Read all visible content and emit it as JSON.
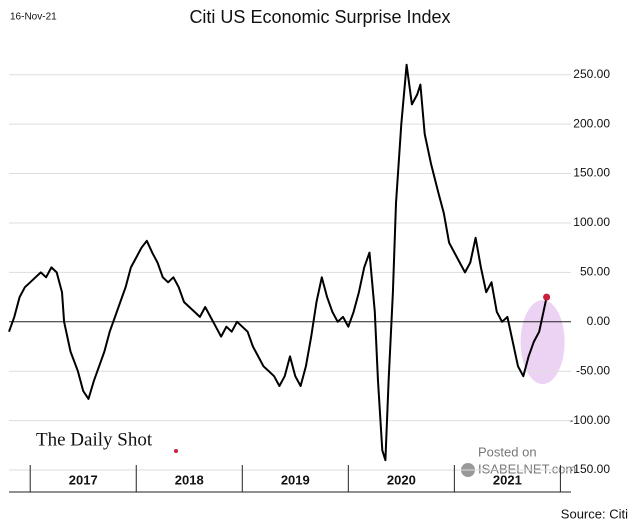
{
  "chart_data": {
    "type": "line",
    "title": "Citi US Economic Surprise Index",
    "date": "16-Nov-21",
    "brand": "The Daily Shot",
    "watermark": [
      "Posted on",
      "ISABELNET.com"
    ],
    "source": "Source: Citi",
    "series": [
      {
        "name": "Citi US Economic Surprise Index",
        "color": "#000000",
        "x": [
          2016.8,
          2016.85,
          2016.9,
          2016.95,
          2017.0,
          2017.05,
          2017.1,
          2017.15,
          2017.2,
          2017.25,
          2017.3,
          2017.32,
          2017.38,
          2017.45,
          2017.5,
          2017.55,
          2017.6,
          2017.65,
          2017.7,
          2017.75,
          2017.8,
          2017.85,
          2017.9,
          2017.95,
          2018.0,
          2018.05,
          2018.1,
          2018.15,
          2018.2,
          2018.25,
          2018.3,
          2018.35,
          2018.4,
          2018.45,
          2018.5,
          2018.55,
          2018.6,
          2018.65,
          2018.7,
          2018.75,
          2018.8,
          2018.85,
          2018.9,
          2018.95,
          2019.0,
          2019.05,
          2019.1,
          2019.15,
          2019.2,
          2019.25,
          2019.3,
          2019.35,
          2019.4,
          2019.45,
          2019.5,
          2019.55,
          2019.6,
          2019.65,
          2019.7,
          2019.75,
          2019.8,
          2019.85,
          2019.9,
          2019.95,
          2020.0,
          2020.05,
          2020.1,
          2020.15,
          2020.2,
          2020.25,
          2020.28,
          2020.32,
          2020.35,
          2020.38,
          2020.42,
          2020.45,
          2020.5,
          2020.55,
          2020.6,
          2020.65,
          2020.68,
          2020.72,
          2020.78,
          2020.85,
          2020.9,
          2020.95,
          2021.0,
          2021.05,
          2021.1,
          2021.15,
          2021.2,
          2021.25,
          2021.3,
          2021.35,
          2021.4,
          2021.45,
          2021.5,
          2021.55,
          2021.6,
          2021.65,
          2021.7,
          2021.75,
          2021.8,
          2021.85,
          2021.87
        ],
        "values": [
          -10,
          5,
          25,
          35,
          40,
          45,
          50,
          45,
          55,
          50,
          30,
          0,
          -30,
          -50,
          -70,
          -78,
          -60,
          -45,
          -30,
          -10,
          5,
          20,
          35,
          55,
          65,
          75,
          82,
          70,
          60,
          45,
          40,
          45,
          35,
          20,
          15,
          10,
          5,
          15,
          5,
          -5,
          -15,
          -5,
          -10,
          0,
          -5,
          -10,
          -25,
          -35,
          -45,
          -50,
          -55,
          -65,
          -55,
          -35,
          -55,
          -65,
          -45,
          -15,
          20,
          45,
          25,
          10,
          0,
          5,
          -5,
          10,
          30,
          55,
          70,
          10,
          -60,
          -130,
          -140,
          -60,
          30,
          120,
          200,
          260,
          220,
          230,
          240,
          190,
          160,
          130,
          110,
          80,
          70,
          60,
          50,
          60,
          85,
          55,
          30,
          40,
          10,
          0,
          5,
          -20,
          -45,
          -55,
          -35,
          -20,
          -10,
          15,
          25
        ]
      }
    ],
    "highlight_color": "#cc1f3c",
    "xlim": [
      2016.8,
      2022.1
    ],
    "xticks": [
      {
        "value": 2017.5,
        "label": "2017"
      },
      {
        "value": 2018.5,
        "label": "2018"
      },
      {
        "value": 2019.5,
        "label": "2019"
      },
      {
        "value": 2020.5,
        "label": "2020"
      },
      {
        "value": 2021.5,
        "label": "2021"
      }
    ],
    "ylim": [
      -155,
      275
    ],
    "yticks": [
      {
        "value": 250,
        "label": "250.00"
      },
      {
        "value": 200,
        "label": "200.00"
      },
      {
        "value": 150,
        "label": "150.00"
      },
      {
        "value": 100,
        "label": "100.00"
      },
      {
        "value": 50,
        "label": "50.00"
      },
      {
        "value": 0,
        "label": "0.00"
      },
      {
        "value": -50,
        "label": "-50.00"
      },
      {
        "value": -100,
        "label": "-100.00"
      },
      {
        "value": -150,
        "label": "-150.00"
      }
    ],
    "grid": true
  }
}
